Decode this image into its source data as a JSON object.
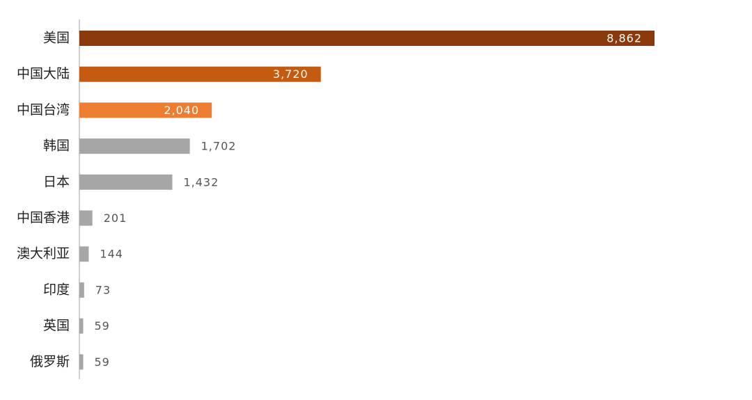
{
  "chart_data": {
    "type": "hbar",
    "categories": [
      "美国",
      "中国大陆",
      "中国台湾",
      "韩国",
      "日本",
      "中国香港",
      "澳大利亚",
      "印度",
      "英国",
      "俄罗斯"
    ],
    "values": [
      8862,
      3720,
      2040,
      1702,
      1432,
      201,
      144,
      73,
      59,
      59
    ],
    "value_labels": [
      "8,862",
      "3,720",
      "2,040",
      "1,702",
      "1,432",
      "201",
      "144",
      "73",
      "59",
      "59"
    ],
    "colors": [
      "#8b3a0e",
      "#c55a11",
      "#ed7d31",
      "#a6a6a6",
      "#a6a6a6",
      "#a6a6a6",
      "#a6a6a6",
      "#a6a6a6",
      "#a6a6a6",
      "#a6a6a6"
    ]
  }
}
